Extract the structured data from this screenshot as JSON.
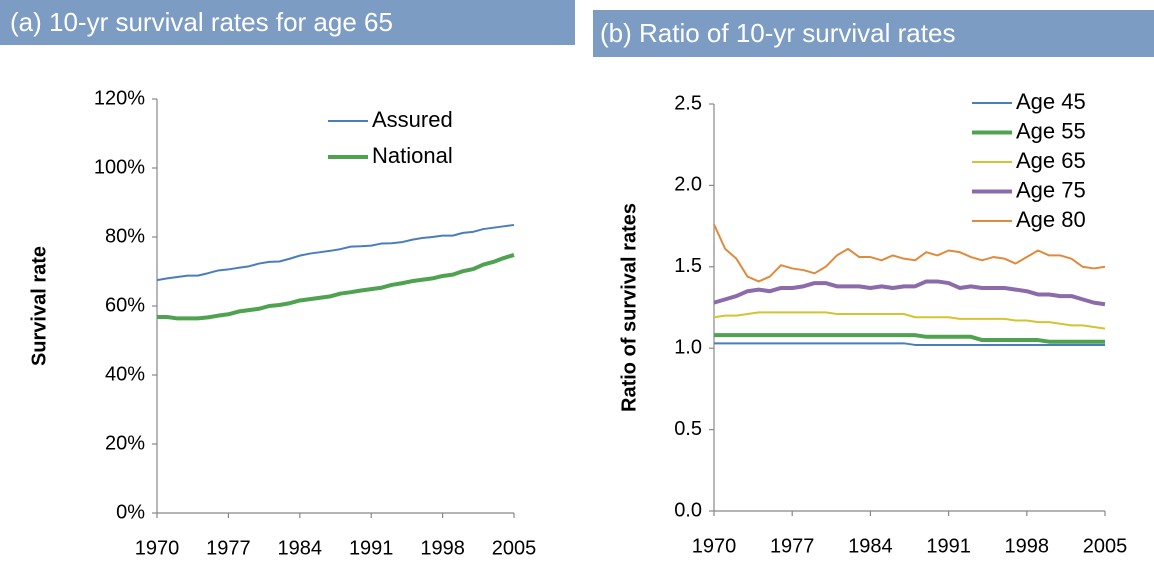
{
  "chart_data": [
    {
      "type": "line",
      "title": "(a) 10-yr survival rates for age 65",
      "y_label": "Survival rate",
      "x": [
        1970,
        1971,
        1972,
        1973,
        1974,
        1975,
        1976,
        1977,
        1978,
        1979,
        1980,
        1981,
        1982,
        1983,
        1984,
        1985,
        1986,
        1987,
        1988,
        1989,
        1990,
        1991,
        1992,
        1993,
        1994,
        1995,
        1996,
        1997,
        1998,
        1999,
        2000,
        2001,
        2002,
        2003,
        2004,
        2005
      ],
      "series": [
        {
          "name": "Assured",
          "color": "#4a7ebb",
          "values": [
            67.5,
            68,
            68.4,
            68.8,
            68.8,
            69.5,
            70.3,
            70.6,
            71.1,
            71.5,
            72.3,
            72.8,
            72.9,
            73.7,
            74.6,
            75.2,
            75.6,
            76.0,
            76.5,
            77.2,
            77.3,
            77.5,
            78.1,
            78.2,
            78.5,
            79.2,
            79.7,
            80.0,
            80.4,
            80.4,
            81.2,
            81.5,
            82.3,
            82.7,
            83.1,
            83.5
          ]
        },
        {
          "name": "National",
          "color": "#4fa24f",
          "values": [
            56.8,
            56.8,
            56.4,
            56.4,
            56.4,
            56.7,
            57.2,
            57.6,
            58.4,
            58.8,
            59.2,
            60.0,
            60.3,
            60.8,
            61.6,
            62.0,
            62.4,
            62.8,
            63.6,
            64.0,
            64.5,
            64.9,
            65.3,
            66.1,
            66.6,
            67.2,
            67.6,
            68.0,
            68.7,
            69.1,
            70.1,
            70.7,
            72.0,
            72.8,
            73.9,
            74.8
          ]
        }
      ],
      "xlim": [
        1970,
        2005
      ],
      "xticks": [
        1970,
        1977,
        1984,
        1991,
        1998,
        2005
      ],
      "ylim": [
        0,
        120
      ],
      "yticks": [
        {
          "value": 0,
          "label": "0%"
        },
        {
          "value": 20,
          "label": "20%"
        },
        {
          "value": 40,
          "label": "40%"
        },
        {
          "value": 60,
          "label": "60%"
        },
        {
          "value": 80,
          "label": "80%"
        },
        {
          "value": 100,
          "label": "100%"
        },
        {
          "value": 120,
          "label": "120%"
        }
      ],
      "legend": "upper right",
      "grid": false
    },
    {
      "type": "line",
      "title": "(b) Ratio of 10-yr survival rates",
      "y_label": "Ratio of survival rates",
      "x": [
        1970,
        1971,
        1972,
        1973,
        1974,
        1975,
        1976,
        1977,
        1978,
        1979,
        1980,
        1981,
        1982,
        1983,
        1984,
        1985,
        1986,
        1987,
        1988,
        1989,
        1990,
        1991,
        1992,
        1993,
        1994,
        1995,
        1996,
        1997,
        1998,
        1999,
        2000,
        2001,
        2002,
        2003,
        2004,
        2005
      ],
      "series": [
        {
          "name": "Age 45",
          "color": "#4a7ebb",
          "values": [
            1.03,
            1.03,
            1.03,
            1.03,
            1.03,
            1.03,
            1.03,
            1.03,
            1.03,
            1.03,
            1.03,
            1.03,
            1.03,
            1.03,
            1.03,
            1.03,
            1.03,
            1.03,
            1.02,
            1.02,
            1.02,
            1.02,
            1.02,
            1.02,
            1.02,
            1.02,
            1.02,
            1.02,
            1.02,
            1.02,
            1.02,
            1.02,
            1.02,
            1.02,
            1.02,
            1.02
          ]
        },
        {
          "name": "Age 55",
          "color": "#4fa24f",
          "values": [
            1.08,
            1.08,
            1.08,
            1.08,
            1.08,
            1.08,
            1.08,
            1.08,
            1.08,
            1.08,
            1.08,
            1.08,
            1.08,
            1.08,
            1.08,
            1.08,
            1.08,
            1.08,
            1.08,
            1.07,
            1.07,
            1.07,
            1.07,
            1.07,
            1.05,
            1.05,
            1.05,
            1.05,
            1.05,
            1.05,
            1.04,
            1.04,
            1.04,
            1.04,
            1.04,
            1.04
          ]
        },
        {
          "name": "Age 65",
          "color": "#d6c332",
          "values": [
            1.19,
            1.2,
            1.2,
            1.21,
            1.22,
            1.22,
            1.22,
            1.22,
            1.22,
            1.22,
            1.22,
            1.21,
            1.21,
            1.21,
            1.21,
            1.21,
            1.21,
            1.21,
            1.19,
            1.19,
            1.19,
            1.19,
            1.18,
            1.18,
            1.18,
            1.18,
            1.18,
            1.17,
            1.17,
            1.16,
            1.16,
            1.15,
            1.14,
            1.14,
            1.13,
            1.12
          ]
        },
        {
          "name": "Age 75",
          "color": "#8c6bab",
          "values": [
            1.28,
            1.3,
            1.32,
            1.35,
            1.36,
            1.35,
            1.37,
            1.37,
            1.38,
            1.4,
            1.4,
            1.38,
            1.38,
            1.38,
            1.37,
            1.38,
            1.37,
            1.38,
            1.38,
            1.41,
            1.41,
            1.4,
            1.37,
            1.38,
            1.37,
            1.37,
            1.37,
            1.36,
            1.35,
            1.33,
            1.33,
            1.32,
            1.32,
            1.3,
            1.28,
            1.27
          ]
        },
        {
          "name": "Age 80",
          "color": "#e08a3c",
          "values": [
            1.76,
            1.61,
            1.55,
            1.44,
            1.41,
            1.44,
            1.51,
            1.49,
            1.48,
            1.46,
            1.5,
            1.57,
            1.61,
            1.56,
            1.56,
            1.54,
            1.57,
            1.55,
            1.54,
            1.59,
            1.57,
            1.6,
            1.59,
            1.56,
            1.54,
            1.56,
            1.55,
            1.52,
            1.56,
            1.6,
            1.57,
            1.57,
            1.55,
            1.5,
            1.49,
            1.5
          ]
        }
      ],
      "xlim": [
        1970,
        2005
      ],
      "xticks": [
        1970,
        1977,
        1984,
        1991,
        1998,
        2005
      ],
      "ylim": [
        0,
        2.5
      ],
      "yticks": [
        {
          "value": 0,
          "label": "0.0"
        },
        0.5,
        {
          "value": 1,
          "label": "1.0"
        },
        1.5,
        {
          "value": 2,
          "label": "2.0"
        },
        2.5
      ],
      "legend": "upper right",
      "grid": false
    }
  ]
}
